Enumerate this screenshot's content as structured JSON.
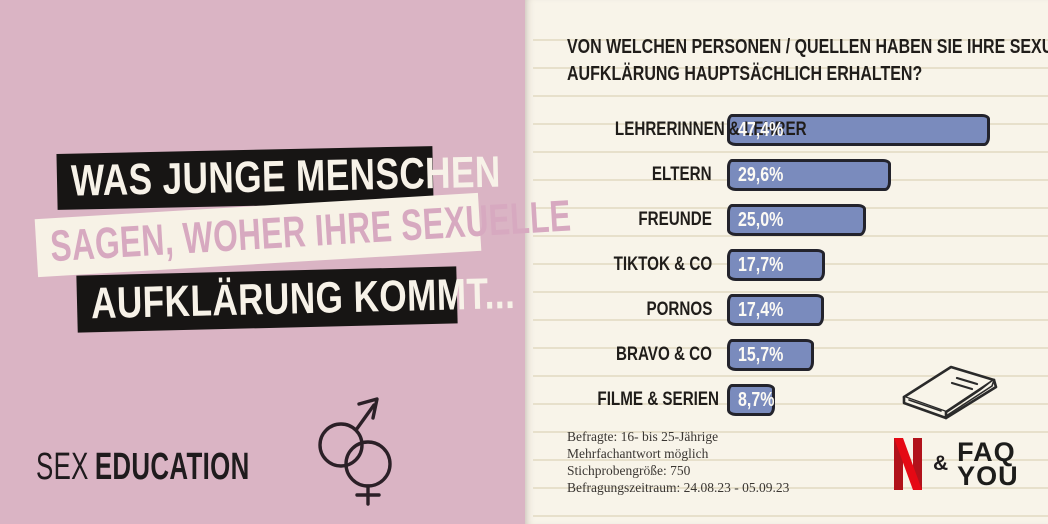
{
  "left_panel": {
    "headline_line1": "WAS JUNGE MENSCHEN",
    "headline_line2": "SAGEN, WOHER IHRE SEXUELLE",
    "headline_line3": "AUFKLÄRUNG KOMMT...",
    "brand_word1": "SEX",
    "brand_word2": "EDUCATION",
    "icon": "male-female-gender-symbols"
  },
  "chart_title_line1": "VON WELCHEN PERSONEN / QUELLEN HABEN SIE IHRE SEXUELLE",
  "chart_title_line2": "AUFKLÄRUNG HAUPTSÄCHLICH ERHALTEN?",
  "chart_data": {
    "type": "bar",
    "orientation": "horizontal",
    "title": "Von welchen Personen / Quellen haben Sie Ihre sexuelle Aufklärung hauptsächlich erhalten?",
    "categories": [
      "LEHRERINNEN & LEHRER",
      "ELTERN",
      "FREUNDE",
      "TIKTOK & CO",
      "PORNOS",
      "BRAVO & CO",
      "FILME & SERIEN"
    ],
    "values": [
      47.4,
      29.6,
      25.0,
      17.7,
      17.4,
      15.7,
      8.7
    ],
    "value_labels": [
      "47,4%",
      "29,6%",
      "25,0%",
      "17,7%",
      "17,4%",
      "15,7%",
      "8,7%"
    ],
    "unit": "%",
    "xlim": [
      0,
      50
    ],
    "grid": false,
    "legend": false,
    "bar_color": "#7a8bbd",
    "bar_border_color": "#23232c"
  },
  "footnotes": [
    "Befragte: 16- bis 25-Jährige",
    "Mehrfachantwort möglich",
    "Stichprobengröße: 750",
    "Befragungszeitraum: 24.08.23 - 05.09.23"
  ],
  "logos": {
    "netflix": "N",
    "ampersand": "&",
    "faq_line1": "FAQ",
    "faq_line2": "YOU"
  },
  "colors": {
    "pink_background": "#dab4c4",
    "cream_background": "#f8f4e9",
    "black_box": "#171514",
    "pink_text": "#d7a9c0",
    "bar_fill": "#7a8bbd",
    "bar_border": "#23232c",
    "netflix_red_bar": "#b1121b",
    "netflix_red_ribbon": "#e50914",
    "ink": "#201d1a"
  }
}
